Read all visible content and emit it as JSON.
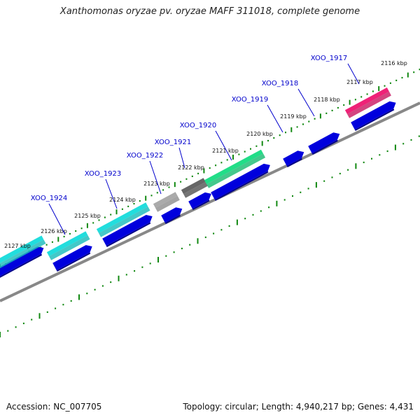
{
  "title": "Xanthomonas oryzae pv. oryzae MAFF 311018, complete genome",
  "footer": {
    "accession": "Accession: NC_007705",
    "summary": "Topology: circular; Length: 4,940,217 bp; Genes: 4,431"
  },
  "ticks": [
    {
      "label": "2116 kbp",
      "kbp": 2116
    },
    {
      "label": "2117 kbp",
      "kbp": 2117
    },
    {
      "label": "2118 kbp",
      "kbp": 2118
    },
    {
      "label": "2119 kbp",
      "kbp": 2119
    },
    {
      "label": "2120 kbp",
      "kbp": 2120
    },
    {
      "label": "2121 kbp",
      "kbp": 2121
    },
    {
      "label": "2122 kbp",
      "kbp": 2122
    },
    {
      "label": "2123 kbp",
      "kbp": 2123
    },
    {
      "label": "2124 kbp",
      "kbp": 2124
    },
    {
      "label": "2125 kbp",
      "kbp": 2125
    },
    {
      "label": "2126 kbp",
      "kbp": 2126
    },
    {
      "label": "2127 kbp",
      "kbp": 2127
    }
  ],
  "genes": [
    {
      "label": "XOO_1917",
      "color": "#ee2277"
    },
    {
      "label": "XOO_1918",
      "color": "#ffffff"
    },
    {
      "label": "XOO_1919",
      "color": "#ffffff"
    },
    {
      "label": "XOO_1920",
      "color": "#22dd88"
    },
    {
      "label": "XOO_1921",
      "color": "#666666"
    },
    {
      "label": "XOO_1922",
      "color": "#aaaaaa"
    },
    {
      "label": "XOO_1923",
      "color": "#22dddd"
    },
    {
      "label": "XOO_1924",
      "color": "#22dddd"
    }
  ],
  "colors": {
    "tick": "#118811",
    "backbone": "#888888",
    "cds": "#0000dd",
    "gene_label": "#0000cc"
  }
}
